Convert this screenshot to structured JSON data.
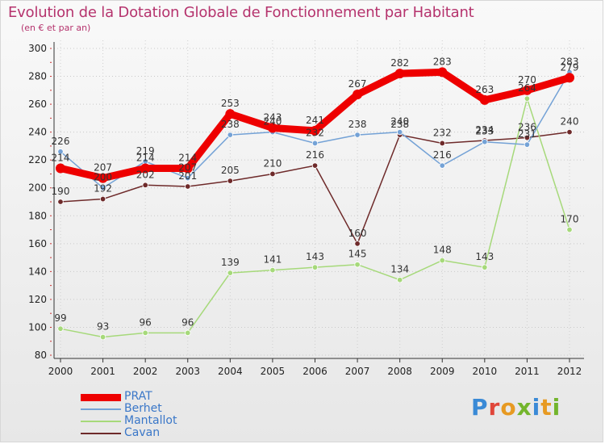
{
  "title": "Evolution de la Dotation Globale de Fonctionnement par Habitant",
  "subtitle": "(en € et par an)",
  "logo": {
    "text": "Proxiti",
    "colors": [
      "#3a8ad6",
      "#e0463a",
      "#e79a22",
      "#73b52c",
      "#3a8ad6",
      "#e79a22",
      "#73b52c"
    ]
  },
  "chart_data": {
    "type": "line",
    "title": "Evolution de la Dotation Globale de Fonctionnement par Habitant",
    "subtitle": "(en € et par an)",
    "xlabel": "",
    "ylabel": "",
    "ylim": [
      80,
      300
    ],
    "yticks": [
      80,
      100,
      120,
      140,
      160,
      180,
      200,
      220,
      240,
      260,
      280,
      300
    ],
    "grid": true,
    "legend_position": "bottom-left",
    "categories": [
      "2000",
      "2001",
      "2002",
      "2003",
      "2004",
      "2005",
      "2006",
      "2007",
      "2008",
      "2009",
      "2010",
      "2011",
      "2012"
    ],
    "series": [
      {
        "name": "PRAT",
        "color": "#ee0000",
        "values": [
          214,
          207,
          214,
          214,
          253,
          243,
          241,
          267,
          282,
          283,
          263,
          270,
          279
        ],
        "labels": [
          "214",
          "207",
          "214",
          "214",
          "253",
          "243",
          "241",
          "267",
          "282",
          "283",
          "263",
          "270",
          "279"
        ]
      },
      {
        "name": "Berhet",
        "color": "#74a2d6",
        "values": [
          226,
          200,
          219,
          207,
          238,
          240,
          232,
          238,
          240,
          216,
          233,
          231,
          283
        ],
        "labels": [
          "226",
          "200",
          "219",
          "207",
          "238",
          "240",
          "232",
          "238",
          "240",
          "216",
          "233",
          "231",
          "283"
        ]
      },
      {
        "name": "Mantallot",
        "color": "#a6d97a",
        "values": [
          99,
          93,
          96,
          96,
          139,
          141,
          143,
          145,
          134,
          148,
          143,
          264,
          170
        ],
        "labels": [
          "99",
          "93",
          "96",
          "96",
          "139",
          "141",
          "143",
          "145",
          "134",
          "148",
          "143",
          "264",
          "170"
        ]
      },
      {
        "name": "Cavan",
        "color": "#6e2a2a",
        "values": [
          190,
          192,
          202,
          201,
          205,
          210,
          216,
          160,
          238,
          232,
          234,
          236,
          240
        ],
        "labels": [
          "190",
          "192",
          "202",
          "201",
          "205",
          "210",
          "216",
          "160",
          "238",
          "232",
          "234",
          "236",
          "240"
        ]
      }
    ]
  }
}
